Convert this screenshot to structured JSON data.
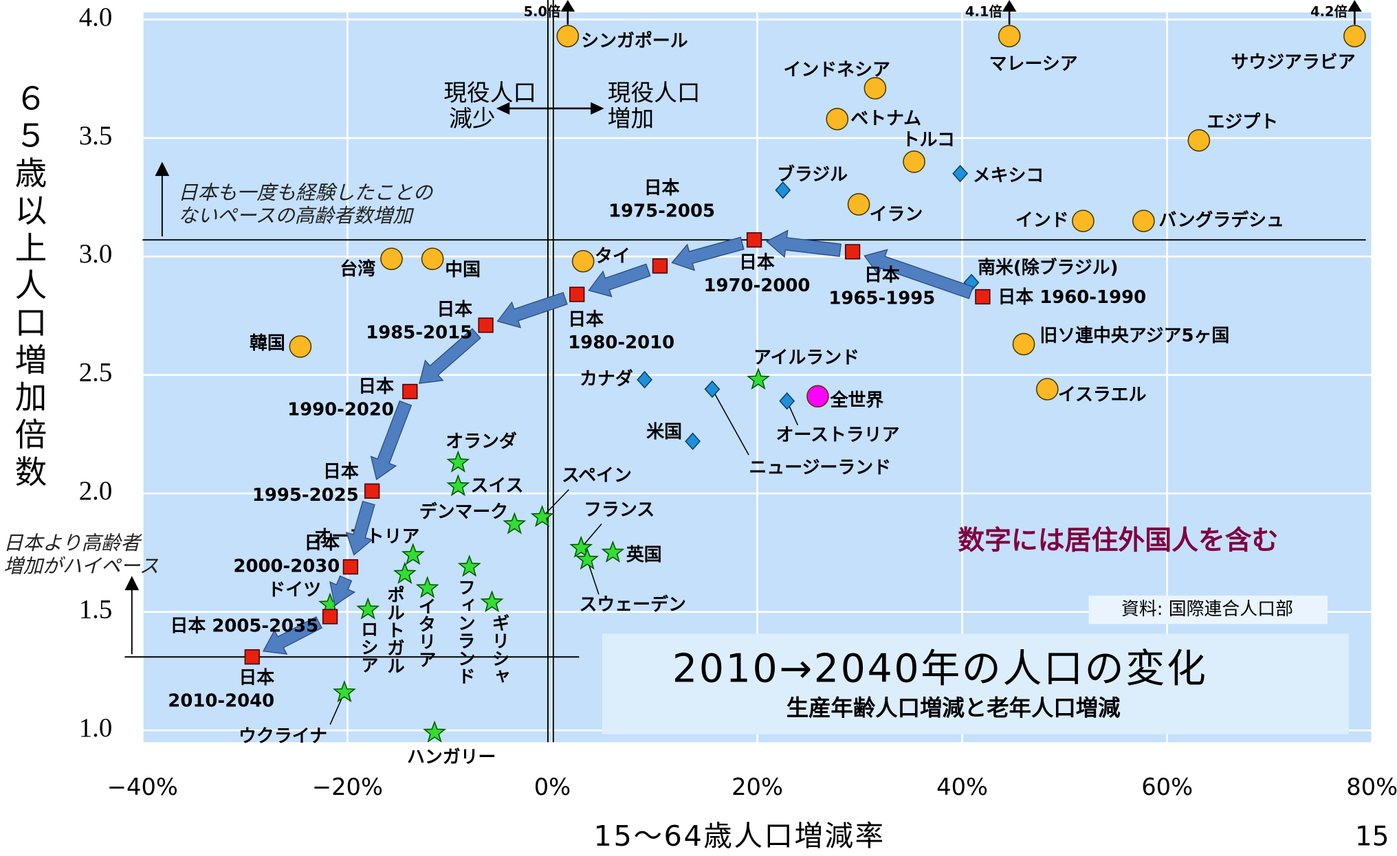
{
  "chart_data": {
    "type": "scatter",
    "title": "2010→2040年の人口の変化",
    "subtitle": "生産年齢人口増減と老年人口増減",
    "x_label": "15～64歳人口増減率",
    "y_label": "６５歳以上人口増加倍数",
    "xlim": [
      -40,
      80
    ],
    "ylim": [
      0.95,
      4.03
    ],
    "xticks": [
      {
        "value": -40,
        "label": "−40%"
      },
      {
        "value": -20,
        "label": "−20%"
      },
      {
        "value": 0,
        "label": "0%"
      },
      {
        "value": 20,
        "label": "20%"
      },
      {
        "value": 40,
        "label": "40%"
      },
      {
        "value": 60,
        "label": "60%"
      },
      {
        "value": 80,
        "label": "80%"
      }
    ],
    "yticks": [
      {
        "value": 1,
        "label": "1.0"
      },
      {
        "value": 1.5,
        "label": "1.5"
      },
      {
        "value": 2,
        "label": "2.0"
      },
      {
        "value": 2.5,
        "label": "2.5"
      },
      {
        "value": 3,
        "label": "3.0"
      },
      {
        "value": 3.5,
        "label": "3.5"
      },
      {
        "value": 4,
        "label": "4.0"
      }
    ],
    "grid": true,
    "groups": [
      {
        "marker": "circle",
        "color": "#fbb823",
        "labels": [
          [
            "シンガポール"
          ],
          [
            "マレーシア"
          ],
          [
            "サウジアラビア"
          ],
          [
            "インドネシア"
          ],
          [
            "ベトナム"
          ],
          [
            "トルコ"
          ],
          [
            "エジプト"
          ],
          [
            "イラン"
          ],
          [
            "インド"
          ],
          [
            "バングラデシュ"
          ],
          [
            "台湾"
          ],
          [
            "中国"
          ],
          [
            "タイ"
          ],
          [
            "韓国"
          ],
          [
            "旧ソ連中央アジア5ヶ国"
          ],
          [
            "イスラエル"
          ]
        ],
        "x": [
          1.5,
          44.6,
          78.3,
          31.5,
          27.8,
          35.3,
          63.1,
          29.9,
          51.8,
          57.7,
          -15.7,
          -11.7,
          3.0,
          -24.6,
          46.0,
          48.3
        ],
        "y": [
          3.93,
          3.93,
          3.93,
          3.71,
          3.58,
          3.4,
          3.49,
          3.22,
          3.15,
          3.15,
          2.99,
          2.99,
          2.98,
          2.62,
          2.63,
          2.44
        ],
        "arrow_labels": [
          "5.0倍",
          "4.1倍",
          "4.2倍",
          null,
          null,
          null,
          null,
          null,
          null,
          null,
          null,
          null,
          null,
          null,
          null,
          null
        ]
      },
      {
        "marker": "diamond",
        "color": "#1e90d8",
        "labels": [
          [
            "メキシコ"
          ],
          [
            "ブラジル"
          ],
          [
            "南米(除ブラジル)"
          ],
          [
            "カナダ"
          ],
          [
            "米国"
          ],
          [
            "ニュージーランド"
          ],
          [
            "オーストラリア"
          ]
        ],
        "x": [
          39.8,
          22.5,
          40.9,
          9.0,
          13.7,
          15.6,
          22.9
        ],
        "y": [
          3.35,
          3.28,
          2.89,
          2.48,
          2.22,
          2.44,
          2.39
        ]
      },
      {
        "marker": "circle",
        "color": "#ff00ff",
        "labels": [
          [
            "全世界"
          ]
        ],
        "x": [
          25.9
        ],
        "y": [
          2.41
        ]
      },
      {
        "marker": "star",
        "color": "#33dd33",
        "labels": [
          [
            "アイルランド"
          ],
          [
            "オランダ"
          ],
          [
            "スイス"
          ],
          [
            "デンマーク"
          ],
          [
            "スペイン"
          ],
          [
            "フランス"
          ],
          [
            "スウェーデン"
          ],
          [
            "英国"
          ],
          [
            "オーストリア"
          ],
          [
            "ポルトガル"
          ],
          [
            "イタリア"
          ],
          [
            "フィンランド"
          ],
          [
            "ギリシャ"
          ],
          [
            "ドイツ"
          ],
          [
            "ロシア"
          ],
          [
            "ウクライナ"
          ],
          [
            "ハンガリー"
          ]
        ],
        "x": [
          20.1,
          -9.2,
          -9.2,
          -3.7,
          -1.0,
          2.8,
          3.4,
          5.9,
          -13.6,
          -14.4,
          -12.2,
          -8.1,
          -5.9,
          -21.7,
          -18.0,
          -20.3,
          -11.5
        ],
        "y": [
          2.48,
          2.13,
          2.03,
          1.87,
          1.9,
          1.77,
          1.72,
          1.75,
          1.74,
          1.66,
          1.6,
          1.69,
          1.54,
          1.53,
          1.51,
          1.16,
          0.99
        ]
      },
      {
        "marker": "square",
        "color": "#e82010",
        "labels": [
          [
            "日本 1960-1990"
          ],
          [
            "日本",
            "1965-1995"
          ],
          [
            "日本",
            "1970-2000"
          ],
          [
            "日本",
            "1975-2005"
          ],
          [
            "日本",
            "1980-2010"
          ],
          [
            "日本",
            "1985-2015"
          ],
          [
            "日本",
            "1990-2020"
          ],
          [
            "日本",
            "1995-2025"
          ],
          [
            "日本",
            "2000-2030"
          ],
          [
            "日本 2005-2035"
          ],
          [
            "日本",
            "2010-2040"
          ]
        ],
        "x": [
          42.0,
          29.3,
          19.7,
          10.5,
          2.4,
          -6.5,
          -13.9,
          -17.6,
          -19.7,
          -21.7,
          -29.3
        ],
        "y": [
          2.83,
          3.02,
          3.07,
          2.96,
          2.84,
          2.71,
          2.43,
          2.01,
          1.69,
          1.48,
          1.31
        ]
      }
    ],
    "annotations": {
      "decrease": [
        "現役人口",
        "減少"
      ],
      "increase": [
        "現役人口",
        "増加"
      ],
      "unprecedented": [
        "日本も一度も経験したことの",
        "ないペースの高齢者数増加"
      ],
      "faster": [
        "日本より高齢者",
        "増加がハイペース"
      ],
      "foreign": "数字には居住外国人を含む",
      "source": "資料: 国際連合人口部",
      "page": "15"
    }
  }
}
